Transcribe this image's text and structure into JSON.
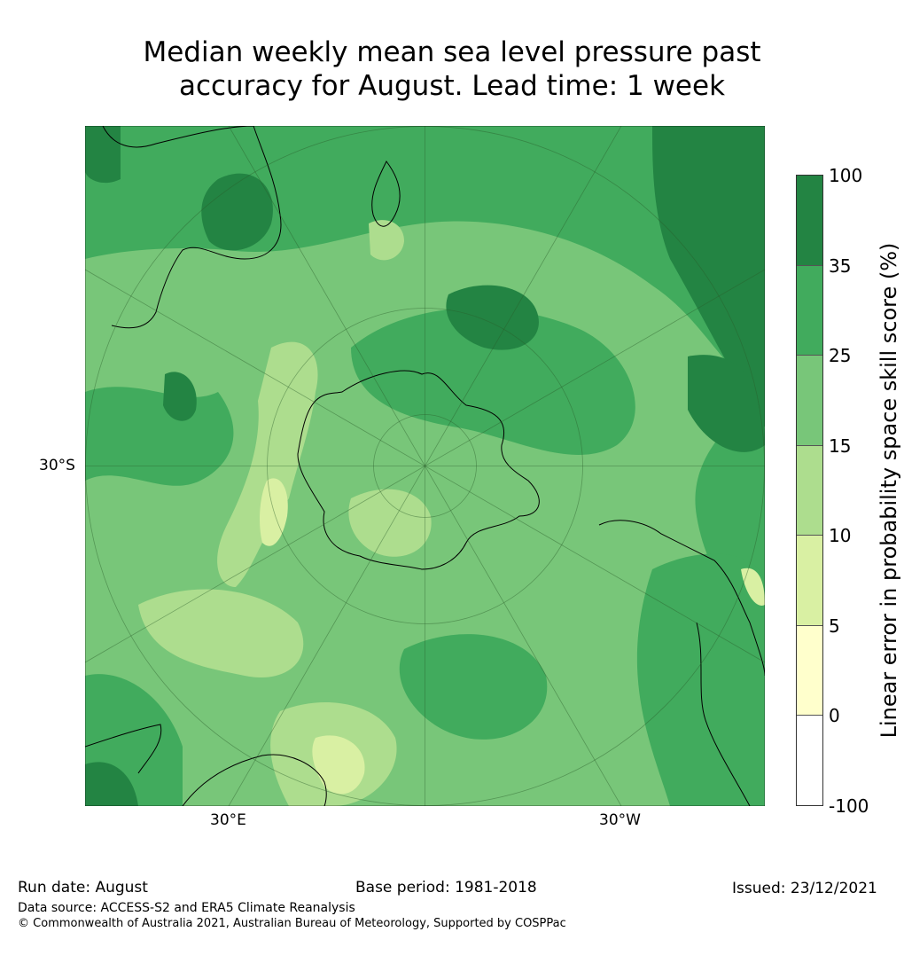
{
  "title_line1": "Median weekly mean sea level pressure past",
  "title_line2": "accuracy for August. Lead time: 1 week",
  "map": {
    "projection": "south-polar-stereographic",
    "lon_labels": [
      "30°E",
      "30°W"
    ],
    "lat_labels": [
      "30°S"
    ]
  },
  "colorbar": {
    "label": "Linear error in probability space skill score (%)",
    "ticks": [
      "100",
      "35",
      "25",
      "15",
      "10",
      "5",
      "0",
      "-100"
    ],
    "colors": [
      "#238443",
      "#41ab5d",
      "#78c679",
      "#addd8e",
      "#d9f0a3",
      "#ffffcc",
      "#ffffff"
    ]
  },
  "footer": {
    "run_date": "Run date: August",
    "base_period": "Base period: 1981-2018",
    "issued": "Issued: 23/12/2021",
    "data_source": "Data source: ACCESS-S2 and ERA5 Climate Reanalysis",
    "copyright": "© Commonwealth of Australia 2021, Australian Bureau of Meteorology, Supported by COSPPac"
  }
}
